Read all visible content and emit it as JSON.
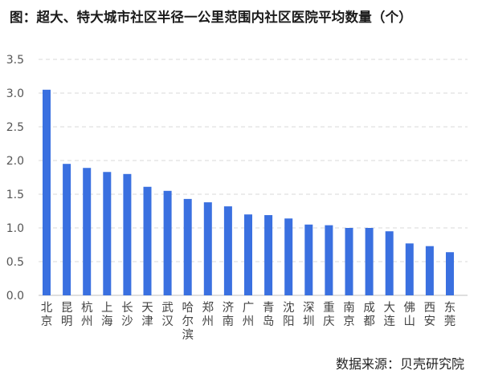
{
  "title": "图：超大、特大城市社区半径一公里范围内社区医院平均数量（个）",
  "source": "数据来源：贝壳研究院",
  "colors": {
    "bar": "#3a70e0",
    "grid": "#d9d9d9",
    "axis": "#bfbfbf"
  },
  "chart_data": {
    "type": "bar",
    "title": "图：超大、特大城市社区半径一公里范围内社区医院平均数量（个）",
    "xlabel": "",
    "ylabel": "",
    "ylim": [
      0,
      3.5
    ],
    "yticks": [
      "0.0",
      "0.5",
      "1.0",
      "1.5",
      "2.0",
      "2.5",
      "3.0",
      "3.5"
    ],
    "grid": "horizontal dashed",
    "categories": [
      "北京",
      "昆明",
      "杭州",
      "上海",
      "长沙",
      "天津",
      "武汉",
      "哈尔滨",
      "郑州",
      "济南",
      "广州",
      "青岛",
      "沈阳",
      "深圳",
      "重庆",
      "南京",
      "成都",
      "大连",
      "佛山",
      "西安",
      "东莞"
    ],
    "values": [
      3.05,
      1.95,
      1.89,
      1.83,
      1.8,
      1.61,
      1.55,
      1.43,
      1.38,
      1.32,
      1.2,
      1.19,
      1.14,
      1.05,
      1.04,
      1.0,
      1.0,
      0.95,
      0.77,
      0.73,
      0.64
    ]
  }
}
